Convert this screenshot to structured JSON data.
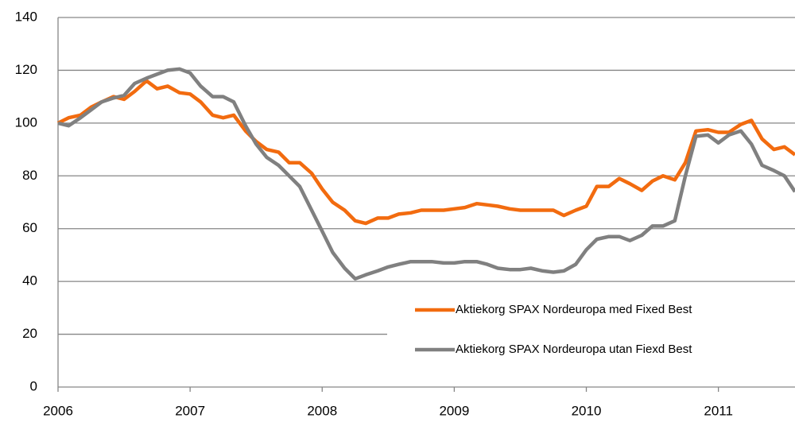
{
  "chart_data": {
    "type": "line",
    "x": [
      2006,
      2006.08,
      2006.17,
      2006.25,
      2006.33,
      2006.42,
      2006.5,
      2006.58,
      2006.67,
      2006.75,
      2006.83,
      2006.92,
      2007,
      2007.08,
      2007.17,
      2007.25,
      2007.33,
      2007.42,
      2007.5,
      2007.58,
      2007.67,
      2007.75,
      2007.83,
      2007.92,
      2008,
      2008.08,
      2008.17,
      2008.25,
      2008.33,
      2008.42,
      2008.5,
      2008.58,
      2008.67,
      2008.75,
      2008.83,
      2008.92,
      2009,
      2009.08,
      2009.17,
      2009.25,
      2009.33,
      2009.42,
      2009.5,
      2009.58,
      2009.67,
      2009.75,
      2009.83,
      2009.92,
      2010,
      2010.08,
      2010.17,
      2010.25,
      2010.33,
      2010.42,
      2010.5,
      2010.58,
      2010.67,
      2010.75,
      2010.83,
      2010.92,
      2011,
      2011.08,
      2011.17,
      2011.25,
      2011.33,
      2011.42,
      2011.5,
      2011.58
    ],
    "series": [
      {
        "name": "Aktiekorg  SPAX Nordeuropa  med Fixed Best",
        "color": "#f26b0f",
        "values": [
          100,
          102,
          103,
          106,
          108,
          110,
          109,
          112,
          116,
          113,
          114,
          111.5,
          111,
          108,
          103,
          102,
          103,
          97,
          93,
          90,
          89,
          85,
          85,
          81,
          75,
          70,
          67,
          63,
          62,
          64,
          64,
          65.5,
          66,
          67,
          67,
          67,
          67.5,
          68,
          69.5,
          69,
          68.5,
          67.5,
          67,
          67,
          67,
          67,
          65,
          67,
          68.5,
          76,
          76,
          79,
          77,
          74.5,
          78,
          80,
          78.5,
          85,
          97,
          97.5,
          96.5,
          96.5,
          99.5,
          101,
          94,
          90,
          91,
          88
        ]
      },
      {
        "name": "Aktiekorg  SPAX Nordeuropa  utan  Fiexd Best",
        "color": "#808080",
        "values": [
          100,
          99,
          102,
          105,
          108,
          109.5,
          110.5,
          115,
          117,
          118.5,
          120,
          120.5,
          119,
          114,
          110,
          110,
          108,
          99,
          92,
          87,
          84,
          80,
          76,
          67,
          59,
          51,
          45,
          41,
          42.5,
          44,
          45.5,
          46.5,
          47.5,
          47.5,
          47.5,
          47,
          47,
          47.5,
          47.5,
          46.5,
          45,
          44.5,
          44.5,
          45,
          44,
          43.5,
          44,
          46.5,
          52,
          56,
          57,
          57,
          55.5,
          57.5,
          61,
          61,
          63,
          80,
          95,
          95.5,
          92.5,
          95.5,
          97,
          92,
          84,
          82,
          80,
          74
        ]
      }
    ],
    "xlim": [
      2006,
      2011.58
    ],
    "xticks": [
      2006,
      2007,
      2008,
      2009,
      2010,
      2011
    ],
    "ylim": [
      0,
      140
    ],
    "yticks": [
      0,
      20,
      40,
      60,
      80,
      100,
      120,
      140
    ],
    "grid": true,
    "legend": "lower right"
  }
}
